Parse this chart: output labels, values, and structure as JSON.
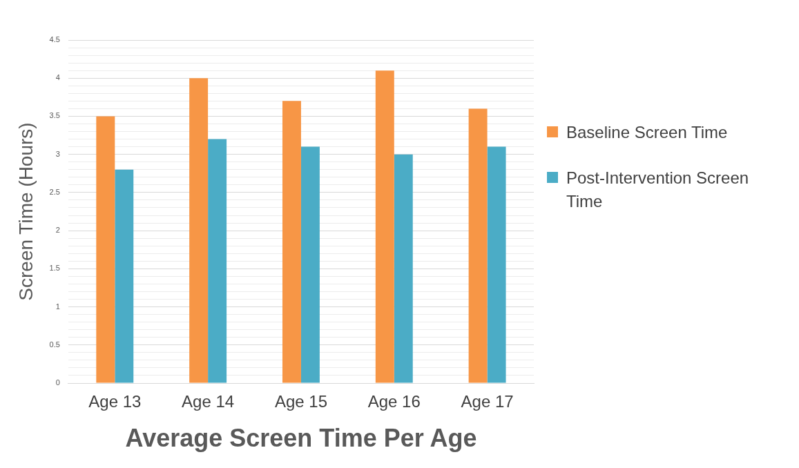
{
  "chart_data": {
    "type": "bar",
    "xlabel": "Average Screen Time Per Age",
    "ylabel": "Screen Time (Hours)",
    "categories": [
      "Age 13",
      "Age 14",
      "Age 15",
      "Age 16",
      "Age 17"
    ],
    "series": [
      {
        "name": "Baseline Screen Time",
        "color": "#f79646",
        "values": [
          3.5,
          4.0,
          3.7,
          4.1,
          3.6
        ]
      },
      {
        "name": "Post-Intervention Screen Time",
        "color": "#4bacc6",
        "values": [
          2.8,
          3.2,
          3.1,
          3.0,
          3.1
        ]
      }
    ],
    "ylim": [
      0,
      4.5
    ],
    "yticks": [
      0,
      {
        "value": 0.1,
        "label": null
      },
      {
        "value": 0.2,
        "label": null
      },
      {
        "value": 0.3,
        "label": null
      },
      {
        "value": 0.4,
        "label": null
      },
      0.5,
      {
        "value": 0.6,
        "label": null
      },
      {
        "value": 0.7,
        "label": null
      },
      {
        "value": 0.8,
        "label": null
      },
      {
        "value": 0.9,
        "label": null
      },
      1,
      {
        "value": 1.1,
        "label": null
      },
      {
        "value": 1.2,
        "label": null
      },
      {
        "value": 1.3,
        "label": null
      },
      {
        "value": 1.4,
        "label": null
      },
      1.5,
      {
        "value": 1.6,
        "label": null
      },
      {
        "value": 1.7,
        "label": null
      },
      {
        "value": 1.8,
        "label": null
      },
      {
        "value": 1.9,
        "label": null
      },
      2,
      {
        "value": 2.1,
        "label": null
      },
      {
        "value": 2.2,
        "label": null
      },
      {
        "value": 2.3,
        "label": null
      },
      {
        "value": 2.4,
        "label": null
      },
      2.5,
      {
        "value": 2.6,
        "label": null
      },
      {
        "value": 2.7,
        "label": null
      },
      {
        "value": 2.8,
        "label": null
      },
      {
        "value": 2.9,
        "label": null
      },
      3,
      {
        "value": 3.1,
        "label": null
      },
      {
        "value": 3.2,
        "label": null
      },
      {
        "value": 3.3,
        "label": null
      },
      {
        "value": 3.4,
        "label": null
      },
      3.5,
      {
        "value": 3.6,
        "label": null
      },
      {
        "value": 3.7,
        "label": null
      },
      {
        "value": 3.8,
        "label": null
      },
      {
        "value": 3.9,
        "label": null
      },
      4,
      {
        "value": 4.1,
        "label": null
      },
      {
        "value": 4.2,
        "label": null
      },
      {
        "value": 4.3,
        "label": null
      },
      {
        "value": 4.4,
        "label": null
      },
      4.5
    ],
    "grid": "y",
    "legend": "right"
  }
}
